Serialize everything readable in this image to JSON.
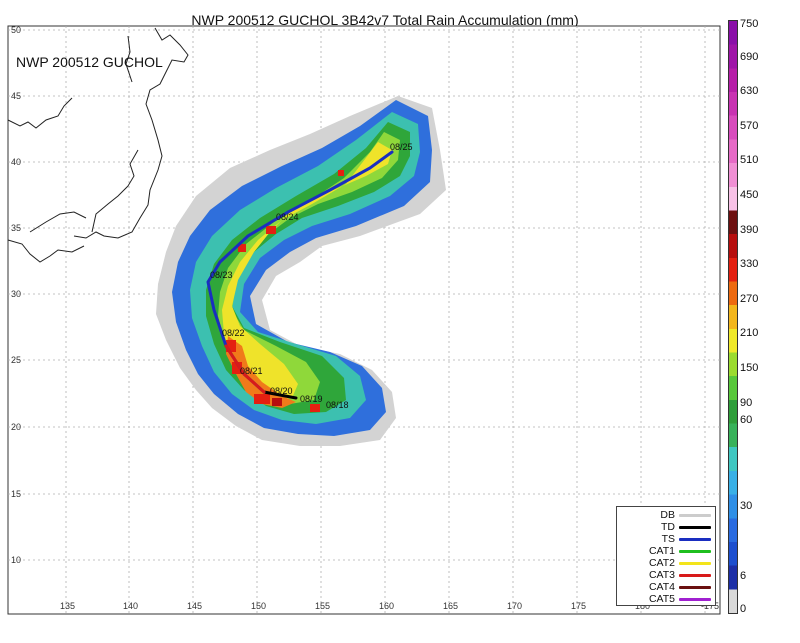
{
  "title": "NWP 200512 GUCHOL 3B42v7 Total Rain Accumulation (mm)",
  "storm_label": "NWP 200512 GUCHOL",
  "map": {
    "lat_ticks": [
      "50",
      "45",
      "40",
      "35",
      "30",
      "25",
      "20",
      "15",
      "10"
    ],
    "lon_ticks": [
      "135",
      "140",
      "145",
      "150",
      "155",
      "160",
      "165",
      "170",
      "175",
      "180",
      "-175"
    ],
    "track_dates": [
      "08/25",
      "08/24",
      "08/23",
      "08/22",
      "08/21",
      "08/20",
      "08/19",
      "08/18"
    ]
  },
  "colorbar": {
    "ticks": [
      "750",
      "690",
      "630",
      "570",
      "510",
      "450",
      "390",
      "330",
      "270",
      "210",
      "150",
      "90",
      "60",
      "30",
      "6",
      "0"
    ],
    "colors": [
      "#d9d9d9",
      "#1d2fa7",
      "#1d4fcf",
      "#2a6be0",
      "#2f8fe6",
      "#39b0e6",
      "#3fc7c1",
      "#38b25a",
      "#2f9e3a",
      "#58c83b",
      "#9bdb2f",
      "#f0e92a",
      "#f3b61c",
      "#ee6a10",
      "#e42011",
      "#b70e0e",
      "#6d1010",
      "#f7c1e6",
      "#f08fd4",
      "#e66ac6",
      "#d84bbd",
      "#c832b2",
      "#b61ea8",
      "#9f15a8",
      "#8a0fa8"
    ]
  },
  "legend": {
    "items": [
      {
        "label": "DB",
        "color": "#cccccc"
      },
      {
        "label": "TD",
        "color": "#000000"
      },
      {
        "label": "TS",
        "color": "#1a2ec0"
      },
      {
        "label": "CAT1",
        "color": "#1fbf1f"
      },
      {
        "label": "CAT2",
        "color": "#f3e41a"
      },
      {
        "label": "CAT3",
        "color": "#d81a1a"
      },
      {
        "label": "CAT4",
        "color": "#6a1010"
      },
      {
        "label": "CAT5",
        "color": "#a020d0"
      }
    ]
  }
}
